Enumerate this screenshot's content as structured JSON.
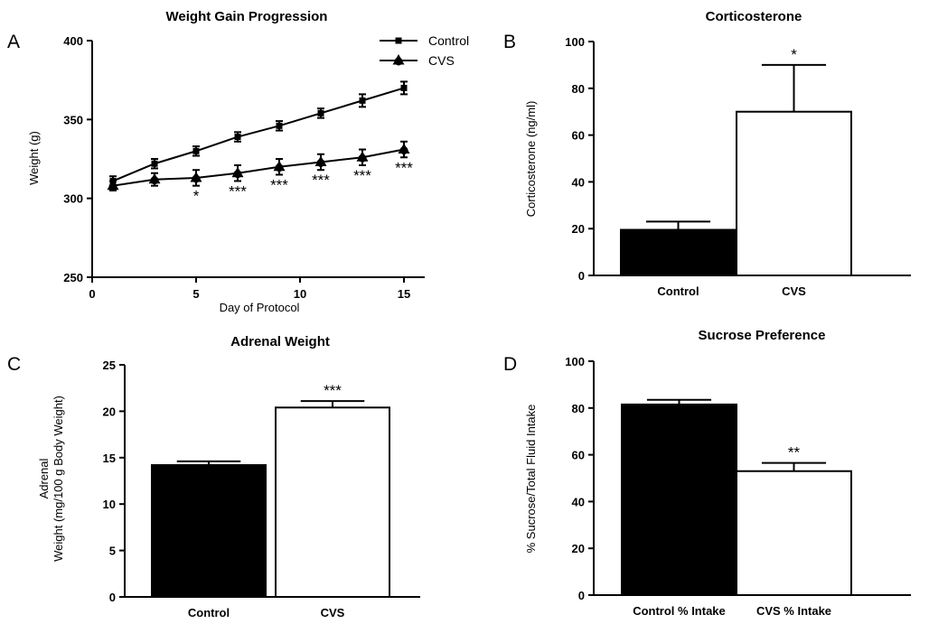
{
  "chart_data": [
    {
      "panel": "A",
      "type": "line",
      "title": "Weight Gain Progression",
      "xlabel": "Day of Protocol",
      "ylabel": "Weight (g)",
      "xlim": [
        0,
        16
      ],
      "ylim": [
        250,
        400
      ],
      "xticks": [
        0,
        5,
        10,
        15
      ],
      "yticks": [
        250,
        300,
        350,
        400
      ],
      "legend_position": "top-right",
      "x": [
        1,
        3,
        5,
        7,
        9,
        11,
        13,
        15
      ],
      "series": [
        {
          "name": "Control",
          "marker": "square",
          "values": [
            311,
            322,
            330,
            339,
            346,
            354,
            362,
            370
          ],
          "errors": [
            3,
            3,
            3,
            3,
            3,
            3,
            4,
            4
          ]
        },
        {
          "name": "CVS",
          "marker": "triangle",
          "values": [
            308,
            312,
            313,
            316,
            320,
            323,
            326,
            331
          ],
          "errors": [
            3,
            4,
            5,
            5,
            5,
            5,
            5,
            5
          ]
        }
      ],
      "annotations": [
        {
          "x": 5,
          "text": "*"
        },
        {
          "x": 7,
          "text": "***"
        },
        {
          "x": 9,
          "text": "***"
        },
        {
          "x": 11,
          "text": "***"
        },
        {
          "x": 13,
          "text": "***"
        },
        {
          "x": 15,
          "text": "***"
        }
      ]
    },
    {
      "panel": "B",
      "type": "bar",
      "title": "Corticosterone",
      "ylabel": "Corticosterone (ng/ml)",
      "categories": [
        "Control",
        "CVS"
      ],
      "values": [
        19.5,
        70
      ],
      "errors": [
        3.5,
        20
      ],
      "bar_colors": [
        "#000000",
        "#ffffff"
      ],
      "ylim": [
        0,
        100
      ],
      "yticks": [
        0,
        20,
        40,
        60,
        80,
        100
      ],
      "annotations": [
        {
          "category": "CVS",
          "text": "*"
        }
      ]
    },
    {
      "panel": "C",
      "type": "bar",
      "title": "Adrenal Weight",
      "ylabel_lines": [
        "Adrenal",
        "Weight (mg/100 g Body Weight)"
      ],
      "categories": [
        "Control",
        "CVS"
      ],
      "values": [
        14.2,
        20.4
      ],
      "errors": [
        0.4,
        0.7
      ],
      "bar_colors": [
        "#000000",
        "#ffffff"
      ],
      "ylim": [
        0,
        25
      ],
      "yticks": [
        0,
        5,
        10,
        15,
        20,
        25
      ],
      "annotations": [
        {
          "category": "CVS",
          "text": "***"
        }
      ]
    },
    {
      "panel": "D",
      "type": "bar",
      "title": "Sucrose Preference",
      "ylabel": "% Sucrose/Total Fluid Intake",
      "categories": [
        "Control % Intake",
        "CVS % Intake"
      ],
      "values": [
        81.5,
        53
      ],
      "errors": [
        2,
        3.5
      ],
      "bar_colors": [
        "#000000",
        "#ffffff"
      ],
      "ylim": [
        0,
        100
      ],
      "yticks": [
        0,
        20,
        40,
        60,
        80,
        100
      ],
      "annotations": [
        {
          "category": "CVS % Intake",
          "text": "**"
        }
      ]
    }
  ]
}
